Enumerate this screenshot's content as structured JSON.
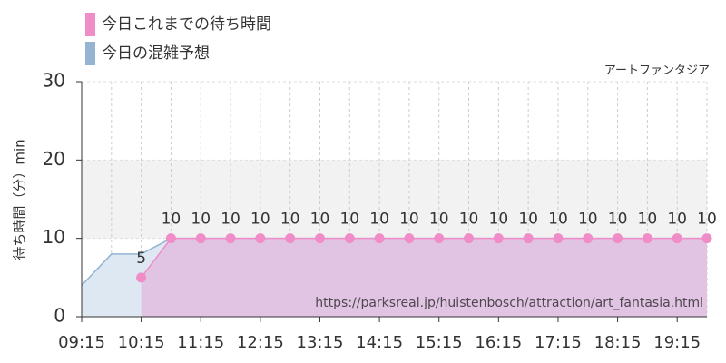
{
  "chart_data": {
    "type": "area",
    "subtitle": "アートファンタジア",
    "ylabel": "待ち時間（分）min",
    "watermark": "https://parksreal.jp/huistenbosch/attraction/art_fantasia.html",
    "xlim": [
      "09:15",
      "19:45"
    ],
    "xticks": [
      "09:15",
      "10:15",
      "11:15",
      "12:15",
      "13:15",
      "14:15",
      "15:15",
      "16:15",
      "17:15",
      "18:15",
      "19:15"
    ],
    "ylim": [
      0,
      30
    ],
    "yticks": [
      0,
      10,
      20,
      30
    ],
    "highlight_band": [
      10,
      20
    ],
    "grid": true,
    "series": [
      {
        "name": "今日これまでの待ち時間",
        "color": "#f08cc8",
        "fill": "#e2bde0",
        "x": [
          "10:15",
          "10:45",
          "11:15",
          "11:45",
          "12:15",
          "12:45",
          "13:15",
          "13:45",
          "14:15",
          "14:45",
          "15:15",
          "15:45",
          "16:15",
          "16:45",
          "17:15",
          "17:45",
          "18:15",
          "18:45",
          "19:15",
          "19:45"
        ],
        "values": [
          5,
          10,
          10,
          10,
          10,
          10,
          10,
          10,
          10,
          10,
          10,
          10,
          10,
          10,
          10,
          10,
          10,
          10,
          10,
          10
        ]
      },
      {
        "name": "今日の混雑予想",
        "color": "#94b4d2",
        "fill": "#dde8f2",
        "x": [
          "09:15",
          "09:45",
          "10:15",
          "10:45",
          "11:15",
          "11:45",
          "12:15",
          "12:45",
          "13:15",
          "13:45",
          "14:15",
          "14:45",
          "15:15",
          "15:45",
          "16:15",
          "16:45",
          "17:15",
          "17:45",
          "18:15",
          "18:45",
          "19:15",
          "19:45"
        ],
        "values": [
          4,
          8,
          8,
          10,
          10,
          10,
          10,
          10,
          10,
          10,
          10,
          10,
          10,
          10,
          10,
          10,
          10,
          10,
          10,
          10,
          10,
          10
        ]
      }
    ]
  }
}
